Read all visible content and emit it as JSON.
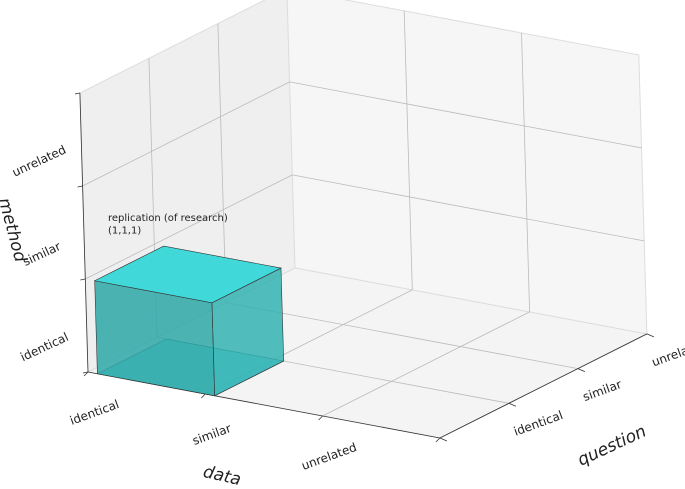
{
  "chart_data": {
    "type": "bar3d",
    "xlabel": "data",
    "ylabel": "question",
    "zlabel": "method",
    "xcategories": [
      "identical",
      "similar",
      "unrelated"
    ],
    "ycategories": [
      "identical",
      "similar",
      "unrelated"
    ],
    "zcategories": [
      "identical",
      "similar",
      "unrelated"
    ],
    "annotation": [
      "replication (of research)",
      "(1,1,1)"
    ],
    "color": "#40d8d8"
  }
}
